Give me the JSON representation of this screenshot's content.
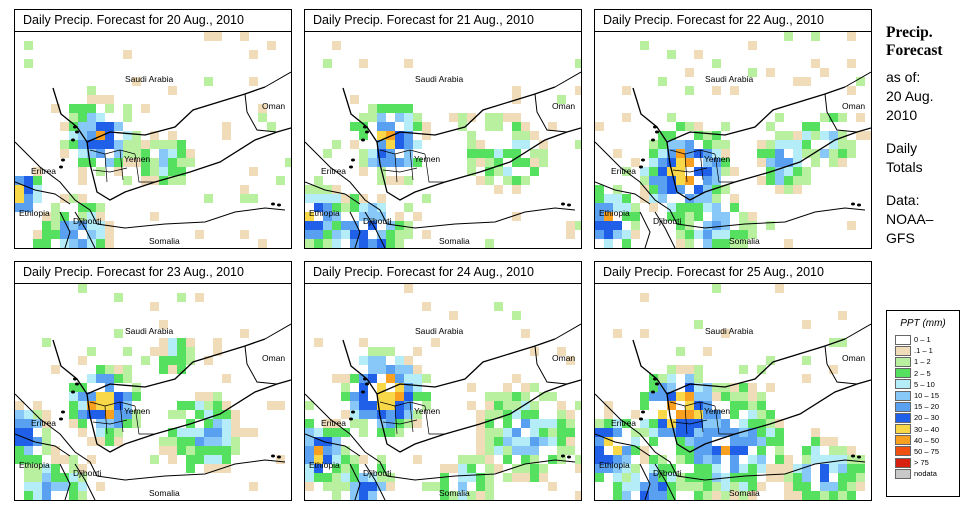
{
  "panels": [
    {
      "title": "Daily Precip. Forecast for  20 Aug., 2010",
      "scenario": 0
    },
    {
      "title": "Daily Precip. Forecast for  21 Aug., 2010",
      "scenario": 1
    },
    {
      "title": "Daily Precip. Forecast for  22 Aug., 2010",
      "scenario": 2
    },
    {
      "title": "Daily Precip. Forecast for  23 Aug., 2010",
      "scenario": 3
    },
    {
      "title": "Daily Precip. Forecast for  24 Aug., 2010",
      "scenario": 4
    },
    {
      "title": "Daily Precip. Forecast for  25 Aug., 2010",
      "scenario": 5
    }
  ],
  "map_labels": {
    "saudi": "Saudi Arabia",
    "oman": "Oman",
    "yemen": "Yemen",
    "eritrea": "Eritrea",
    "ethiopia": "Ethiopia",
    "djibouti": "Djibouti",
    "somalia": "Somalia"
  },
  "sidebar": {
    "heading_line1": "Precip.",
    "heading_line2": "Forecast",
    "asof_line1": "as of:",
    "asof_line2": "20 Aug.",
    "asof_line3": "2010",
    "totals_line1": "Daily",
    "totals_line2": "Totals",
    "data_line1": "Data:",
    "data_line2": "NOAA–",
    "data_line3": "GFS"
  },
  "legend": {
    "title": "PPT (mm)",
    "items": [
      {
        "label": "0 – 1",
        "color": "#ffffff"
      },
      {
        "label": ".1 – 1",
        "color": "#f0dcb8"
      },
      {
        "label": "1 – 2",
        "color": "#b8f0a0"
      },
      {
        "label": "2 – 5",
        "color": "#55e060"
      },
      {
        "label": "5 – 10",
        "color": "#b4ecf8"
      },
      {
        "label": "10 – 15",
        "color": "#88c8f8"
      },
      {
        "label": "15 – 20",
        "color": "#5aa0f0"
      },
      {
        "label": "20 – 30",
        "color": "#2060e8"
      },
      {
        "label": "30 – 40",
        "color": "#f8d848"
      },
      {
        "label": "40 – 50",
        "color": "#f8a020"
      },
      {
        "label": "50 – 75",
        "color": "#f05010"
      },
      {
        "label": "> 75",
        "color": "#d82010"
      },
      {
        "label": "nodata",
        "color": "#c8c8c8"
      }
    ]
  }
}
